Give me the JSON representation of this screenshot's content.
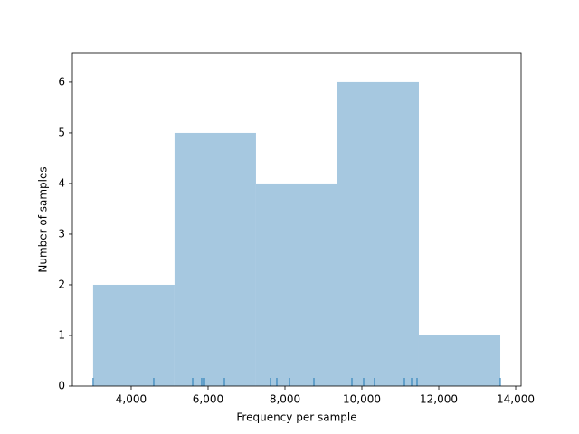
{
  "chart_data": {
    "type": "histogram",
    "x_label": "Frequency per sample",
    "y_label": "Number of samples",
    "bins": [
      3010,
      5128,
      7246,
      9364,
      11482,
      13600
    ],
    "values": [
      2,
      5,
      4,
      6,
      1
    ],
    "color": "#a6c8e0",
    "rug": [
      3010,
      4588,
      5600,
      5835,
      5882,
      5906,
      6424,
      7624,
      7788,
      8118,
      8753,
      9741,
      10047,
      10329,
      11106,
      11294,
      11435,
      13600
    ],
    "rug_color": "#1f77b4",
    "xlim": [
      2471,
      14141
    ],
    "ylim": [
      0,
      6.57
    ],
    "xticks": [
      {
        "value": 4000,
        "label": "4,000"
      },
      {
        "value": 6000,
        "label": "6,000"
      },
      {
        "value": 8000,
        "label": "8,000"
      },
      {
        "value": 10000,
        "label": "10,000"
      },
      {
        "value": 12000,
        "label": "12,000"
      },
      {
        "value": 14000,
        "label": "14,000"
      }
    ],
    "yticks": [
      0,
      1,
      2,
      3,
      4,
      5,
      6
    ]
  }
}
